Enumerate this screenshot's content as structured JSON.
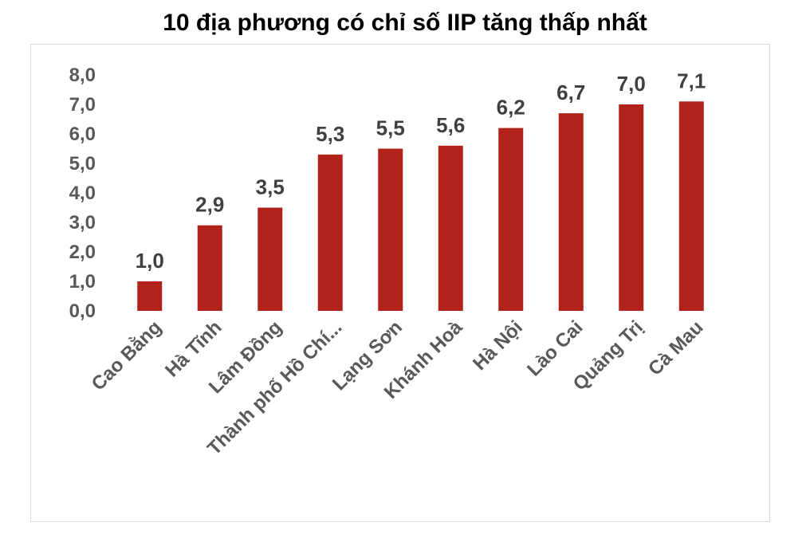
{
  "title": "10 địa phương có chỉ số IIP tăng thấp nhất",
  "chart_data": {
    "type": "bar",
    "title": "10 địa phương có chỉ số IIP tăng thấp nhất",
    "categories": [
      "Cao Bằng",
      "Hà Tĩnh",
      "Lâm Đồng",
      "Thành phố Hồ Chí...",
      "Lạng Sơn",
      "Khánh Hoà",
      "Hà Nội",
      "Lào Cai",
      "Quảng Trị",
      "Cà Mau"
    ],
    "values": [
      1.0,
      2.9,
      3.5,
      5.3,
      5.5,
      5.6,
      6.2,
      6.7,
      7.0,
      7.1
    ],
    "data_labels": [
      "1,0",
      "2,9",
      "3,5",
      "5,3",
      "5,5",
      "5,6",
      "6,2",
      "6,7",
      "7,0",
      "7,1"
    ],
    "yticks": [
      "0,0",
      "1,0",
      "2,0",
      "3,0",
      "4,0",
      "5,0",
      "6,0",
      "7,0",
      "8,0"
    ],
    "ylim": [
      0,
      8
    ],
    "grid": false,
    "legend": "none",
    "xlabel": "",
    "ylabel": "",
    "colors": {
      "bar": "#b0221a",
      "axis_text": "#595959",
      "label_text": "#404040"
    }
  }
}
